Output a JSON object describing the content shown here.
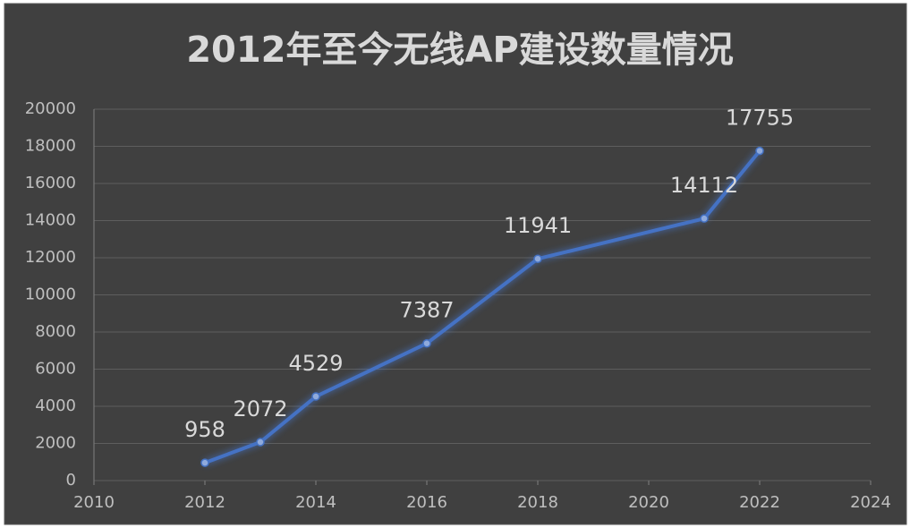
{
  "chart_data": {
    "type": "line",
    "title": "2012年至今无线AP建设数量情况",
    "x": [
      2012,
      2013,
      2014,
      2016,
      2018,
      2021,
      2022
    ],
    "series": [
      {
        "name": "无线AP",
        "color": "#4472c4",
        "values": [
          958,
          2072,
          4529,
          7387,
          11941,
          14112,
          17755
        ]
      }
    ],
    "xlim": [
      2010,
      2024
    ],
    "xticks": [
      2010,
      2012,
      2014,
      2016,
      2018,
      2020,
      2022,
      2024
    ],
    "ylim": [
      0,
      20000
    ],
    "yticks": [
      0,
      2000,
      4000,
      6000,
      8000,
      10000,
      12000,
      14000,
      16000,
      18000,
      20000
    ],
    "grid": true
  }
}
